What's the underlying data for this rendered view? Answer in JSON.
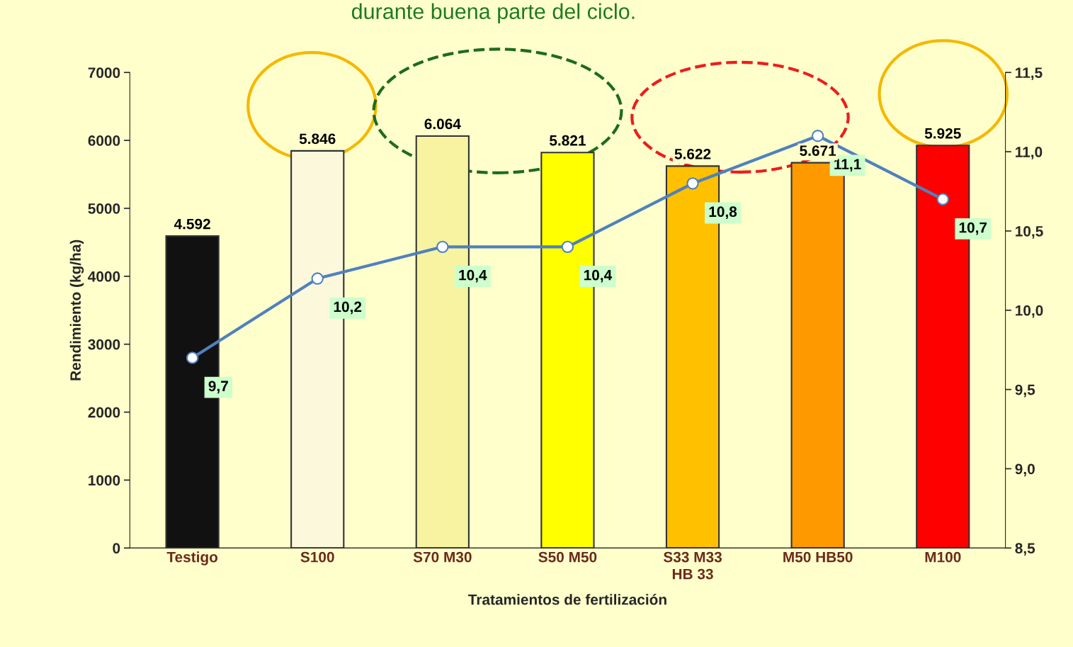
{
  "chart_data": {
    "type": "bar",
    "title": "durante buena parte del ciclo.",
    "xlabel": "Tratamientos de fertilización",
    "ylabel": "Rendimiento (kg/ha)",
    "categories": [
      "Testigo",
      "S100",
      "S70 M30",
      "S50 M50",
      "S33 M33\nHB 33",
      "M50 HB50",
      "M100"
    ],
    "ylim": [
      0,
      7000
    ],
    "yticks": [
      0,
      1000,
      2000,
      3000,
      4000,
      5000,
      6000,
      7000
    ],
    "y2lim": [
      8.5,
      11.5
    ],
    "y2ticks": [
      {
        "value": 8.5,
        "label": "8,5"
      },
      {
        "value": 9.0,
        "label": "9,0"
      },
      {
        "value": 9.5,
        "label": "9,5"
      },
      {
        "value": 10.0,
        "label": "10,0"
      },
      {
        "value": 10.5,
        "label": "10,5"
      },
      {
        "value": 11.0,
        "label": "11,0"
      },
      {
        "value": 11.5,
        "label": "11,5"
      }
    ],
    "grid": false,
    "legend": false,
    "series": [
      {
        "colors": [
          "#111111",
          "#fbf8dc",
          "#f7f3a0",
          "#ffff00",
          "#ffc000",
          "#ff9900",
          "#ff0000"
        ],
        "values": [
          4592,
          5846,
          6064,
          5821,
          5622,
          5671,
          5925
        ],
        "value_labels": [
          "4.592",
          "5.846",
          "6.064",
          "5.821",
          "5.622",
          "5.671",
          "5.925"
        ]
      },
      {
        "type": "line",
        "axis": "y2",
        "color": "#4f81bd",
        "marker": "circle",
        "line_style": "solid",
        "values": [
          9.7,
          10.2,
          10.4,
          10.4,
          10.8,
          11.1,
          10.7
        ],
        "value_labels": [
          "9,7",
          "10,2",
          "10,4",
          "10,4",
          "10,8",
          "11,1",
          "10,7"
        ]
      }
    ]
  }
}
